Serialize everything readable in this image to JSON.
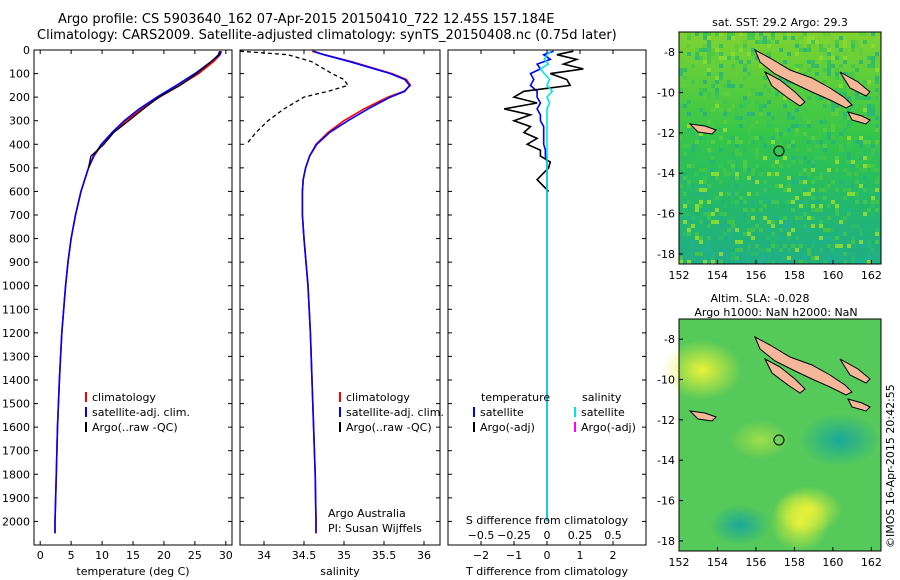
{
  "title": {
    "line1": "Argo profile: CS 5903640_162 07-Apr-2015 20150410_722 12.45S 157.184E",
    "line2": "Climatology: CARS2009. Satellite-adjusted climatology: synTS_20150408.nc (0.75d later)"
  },
  "colors": {
    "climatology": "#ff0000",
    "satellite": "#0000ff",
    "argo": "#000000",
    "salinity_sat": "#00e5e5",
    "salinity_argo": "#ff00ff",
    "land": "#f4b79a"
  },
  "chart_data": [
    {
      "id": "temperature",
      "type": "line",
      "xlabel": "temperature (deg C)",
      "ylabel": "",
      "xlim": [
        -1,
        31
      ],
      "ylim": [
        2100,
        0
      ],
      "xticks": [
        0,
        5,
        10,
        15,
        20,
        25,
        30
      ],
      "yticks": [
        0,
        100,
        200,
        300,
        400,
        500,
        600,
        700,
        800,
        900,
        1000,
        1100,
        1200,
        1300,
        1400,
        1500,
        1600,
        1700,
        1800,
        1900,
        2000
      ],
      "depth": [
        5,
        20,
        50,
        100,
        150,
        200,
        250,
        300,
        350,
        400,
        450,
        500,
        600,
        700,
        800,
        900,
        1000,
        1200,
        1400,
        1600,
        1800,
        2000,
        2050
      ],
      "series": [
        {
          "name": "climatology",
          "values": [
            29.3,
            29.1,
            28.0,
            25.6,
            22.5,
            19.3,
            16.4,
            13.9,
            11.8,
            10.0,
            8.7,
            7.8,
            6.6,
            5.7,
            5.0,
            4.5,
            4.1,
            3.5,
            3.1,
            2.8,
            2.6,
            2.4,
            2.4
          ]
        },
        {
          "name": "satellite-adj. clim.",
          "values": [
            29.2,
            29.0,
            27.6,
            25.0,
            22.0,
            18.9,
            16.0,
            13.6,
            11.6,
            9.9,
            8.6,
            7.8,
            6.6,
            5.7,
            5.0,
            4.5,
            4.1,
            3.5,
            3.1,
            2.8,
            2.6,
            2.4,
            2.4
          ]
        },
        {
          "name": "Argo(..raw -QC)",
          "values": [
            29.0,
            28.8,
            27.6,
            25.3,
            22.6,
            19.2,
            16.7,
            14.3,
            11.9,
            10.3,
            8.2,
            7.8,
            null,
            null,
            null,
            null,
            null,
            null,
            null,
            null,
            null,
            null,
            null
          ]
        }
      ],
      "legend": {
        "items": [
          "climatology",
          "satellite-adj. clim.",
          "Argo(..raw -QC)"
        ],
        "placement": "lower-center"
      }
    },
    {
      "id": "salinity",
      "type": "line",
      "xlabel": "salinity",
      "xlim": [
        33.7,
        36.2
      ],
      "ylim": [
        2100,
        0
      ],
      "xticks": [
        34,
        34.5,
        35,
        35.5,
        36
      ],
      "xticklabels": [
        "34",
        "34.5",
        "35",
        "35.5",
        "36"
      ],
      "depth": [
        5,
        20,
        50,
        100,
        125,
        150,
        175,
        200,
        250,
        300,
        350,
        400,
        450,
        500,
        550,
        600,
        650,
        700,
        800,
        1000,
        1200,
        1400,
        1600,
        1800,
        2000,
        2050
      ],
      "series": [
        {
          "name": "climatology",
          "values": [
            34.6,
            34.75,
            35.1,
            35.6,
            35.78,
            35.83,
            35.75,
            35.55,
            35.25,
            35.0,
            34.8,
            34.65,
            34.57,
            34.52,
            34.49,
            34.48,
            34.48,
            34.48,
            34.5,
            34.55,
            34.58,
            34.6,
            34.62,
            34.64,
            34.65,
            34.65
          ]
        },
        {
          "name": "satellite-adj. clim.",
          "values": [
            34.62,
            34.75,
            35.08,
            35.58,
            35.76,
            35.82,
            35.76,
            35.58,
            35.3,
            35.05,
            34.82,
            34.66,
            34.57,
            34.52,
            34.49,
            34.48,
            34.48,
            34.48,
            34.5,
            34.55,
            34.58,
            34.6,
            34.62,
            34.64,
            34.65,
            34.65
          ]
        },
        {
          "name": "Argo(..raw -QC)",
          "values": [
            33.7,
            34.3,
            34.6,
            34.85,
            35.0,
            35.05,
            34.8,
            34.5,
            34.25,
            34.05,
            33.9,
            33.78,
            null,
            null,
            null,
            null,
            null,
            null,
            null,
            null,
            null,
            null,
            null,
            null,
            null,
            null
          ]
        }
      ],
      "legend": {
        "items": [
          "climatology",
          "satellite-adj. clim.",
          "Argo(..raw -QC)"
        ],
        "placement": "lower-center"
      },
      "annotation": {
        "line1": "Argo Australia",
        "line2": "PI: Susan Wijffels"
      }
    },
    {
      "id": "difference",
      "type": "line",
      "xlabel": "T difference from climatology",
      "top_label": "S difference from climatology",
      "xlim": [
        -3,
        3
      ],
      "ylim": [
        2100,
        0
      ],
      "xticks": [
        -2,
        -1,
        0,
        1,
        2
      ],
      "xticklabels": [
        "−2",
        "−1",
        "0",
        "1",
        "2"
      ],
      "sticks": [
        -0.5,
        -0.25,
        0,
        0.25,
        0.5
      ],
      "sticklabels": [
        "−0.5",
        "−0.25",
        "0",
        "0.25",
        "0.5"
      ],
      "depth": [
        5,
        20,
        40,
        60,
        80,
        100,
        125,
        150,
        175,
        200,
        225,
        250,
        275,
        300,
        325,
        350,
        375,
        400,
        425,
        450,
        475,
        500,
        550,
        600,
        700,
        800,
        900,
        1000,
        1200,
        1500,
        2000
      ],
      "series": [
        {
          "name": "temperature satellite",
          "values": [
            0.2,
            -0.1,
            0.1,
            -0.3,
            -0.2,
            -0.5,
            -0.4,
            -0.5,
            -0.3,
            -0.3,
            -0.2,
            -0.3,
            -0.2,
            -0.2,
            -0.1,
            -0.1,
            -0.1,
            -0.1,
            -0.05,
            -0.05,
            0,
            0,
            0,
            0,
            0,
            0,
            0,
            0,
            0,
            0,
            0
          ]
        },
        {
          "name": "temperature Argo(-adj)",
          "values": [
            0.8,
            0.3,
            0.9,
            0.5,
            1.1,
            0.1,
            0.6,
            0.7,
            -0.7,
            -1.0,
            -0.3,
            -1.3,
            -0.5,
            -1.0,
            -0.5,
            -0.7,
            -0.3,
            -0.6,
            -0.2,
            -0.2,
            0.1,
            0.05,
            -0.3,
            0.05,
            null,
            null,
            null,
            null,
            null,
            null,
            null
          ]
        },
        {
          "name": "salinity satellite",
          "values": [
            0.03,
            0.0,
            -0.02,
            0.01,
            -0.05,
            -0.02,
            0.02,
            0.0,
            0.04,
            0.0,
            0.02,
            0.0,
            0.0,
            0.0,
            0.0,
            0.0,
            0.0,
            0.0,
            0.0,
            0.0,
            0.0,
            0.0,
            0.0,
            0.0,
            0.0,
            0.0,
            0.0,
            0.0,
            0.0,
            0.0,
            0.0
          ]
        }
      ],
      "legend": {
        "col1_title": "temperature",
        "col2_title": "salinity",
        "items": [
          "satellite",
          "Argo(-adj)",
          "satellite",
          "Argo(-adj)"
        ]
      }
    }
  ],
  "maps": {
    "sst": {
      "title": "sat. SST: 29.2 Argo: 29.3",
      "xticks": [
        "152",
        "154",
        "156",
        "158",
        "160",
        "162"
      ],
      "yticks": [
        "-8",
        "-10",
        "-12",
        "-14",
        "-16",
        "-18"
      ],
      "xlim": [
        152,
        162.5
      ],
      "ylim": [
        -18.5,
        -7
      ]
    },
    "sla": {
      "title1": "Altim. SLA: -0.028",
      "title2": "Argo h1000: NaN h2000: NaN",
      "xticks": [
        "152",
        "154",
        "156",
        "158",
        "160",
        "162"
      ],
      "yticks": [
        "-8",
        "-10",
        "-12",
        "-14",
        "-16",
        "-18"
      ],
      "xlim": [
        152,
        162.5
      ],
      "ylim": [
        -18.5,
        -7
      ]
    },
    "profile_location": {
      "lat": -12.45,
      "lon": 157.184
    }
  },
  "credit": "©IMOS 16-Apr-2015 20:42:55"
}
